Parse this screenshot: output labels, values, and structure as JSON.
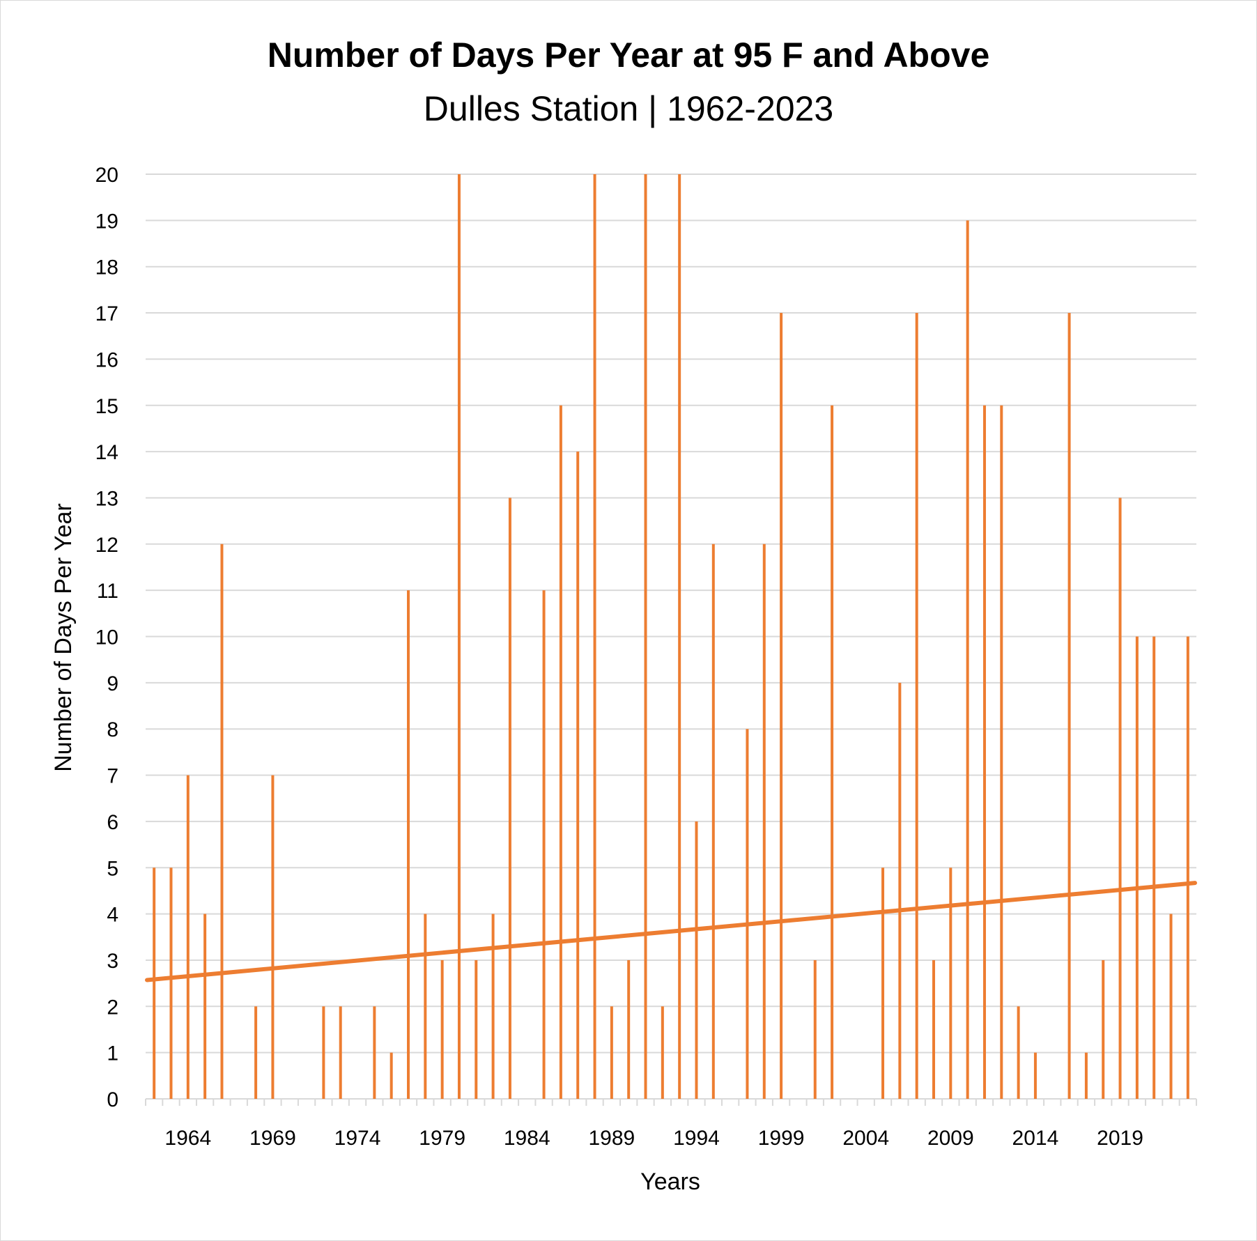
{
  "chart_data": {
    "type": "bar",
    "title": "Number of Days Per Year at 95 F and Above",
    "subtitle": "Dulles Station | 1962-2023",
    "xlabel": "Years",
    "ylabel": "Number of Days Per Year",
    "ylim": [
      0,
      20
    ],
    "yticks": [
      0,
      1,
      2,
      3,
      4,
      5,
      6,
      7,
      8,
      9,
      10,
      11,
      12,
      13,
      14,
      15,
      16,
      17,
      18,
      19,
      20
    ],
    "xtick_labels": [
      "1964",
      "1969",
      "1974",
      "1979",
      "1984",
      "1989",
      "1994",
      "1999",
      "2004",
      "2009",
      "2014",
      "2019"
    ],
    "grid": true,
    "bar_color": "#ED7D31",
    "x": [
      1962,
      1963,
      1964,
      1965,
      1966,
      1967,
      1968,
      1969,
      1970,
      1971,
      1972,
      1973,
      1974,
      1975,
      1976,
      1977,
      1978,
      1979,
      1980,
      1981,
      1982,
      1983,
      1984,
      1985,
      1986,
      1987,
      1988,
      1989,
      1990,
      1991,
      1992,
      1993,
      1994,
      1995,
      1996,
      1997,
      1998,
      1999,
      2000,
      2001,
      2002,
      2003,
      2004,
      2005,
      2006,
      2007,
      2008,
      2009,
      2010,
      2011,
      2012,
      2013,
      2014,
      2015,
      2016,
      2017,
      2018,
      2019,
      2020,
      2021,
      2022,
      2023
    ],
    "values": [
      5,
      5,
      7,
      4,
      12,
      0,
      2,
      7,
      0,
      0,
      2,
      2,
      0,
      2,
      1,
      11,
      4,
      3,
      20,
      3,
      4,
      13,
      0,
      11,
      15,
      14,
      20,
      2,
      3,
      20,
      2,
      20,
      6,
      12,
      0,
      8,
      12,
      17,
      0,
      3,
      15,
      0,
      0,
      5,
      9,
      17,
      3,
      5,
      19,
      15,
      15,
      2,
      1,
      0,
      17,
      1,
      3,
      13,
      10,
      10,
      4,
      10
    ],
    "trendline": {
      "type": "linear",
      "start": [
        1962,
        2.57
      ],
      "end": [
        2023,
        4.67
      ],
      "color": "#ED7D31"
    }
  }
}
